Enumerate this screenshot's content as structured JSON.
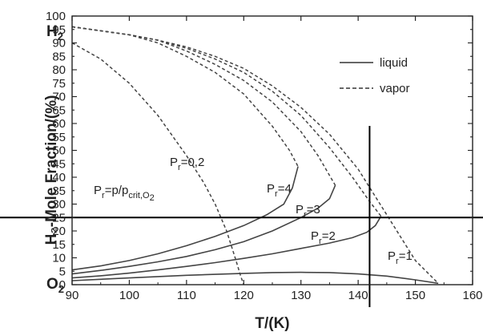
{
  "chart_data": {
    "type": "line",
    "xlabel": "T/(K)",
    "ylabel": "H₂-Mole Fraction/(%)",
    "xlim": [
      90,
      160
    ],
    "ylim": [
      0,
      100
    ],
    "x_ticks": [
      "90",
      "100",
      "110",
      "120",
      "130",
      "140",
      "150",
      "160"
    ],
    "y_ticks": [
      "0",
      "5",
      "10",
      "15",
      "20",
      "25",
      "30",
      "35",
      "40",
      "45",
      "50",
      "55",
      "60",
      "65",
      "70",
      "75",
      "80",
      "85",
      "90",
      "95",
      "100"
    ],
    "grid": false,
    "legend_position": "top-right",
    "legend": [
      {
        "label": "liquid",
        "style": "solid"
      },
      {
        "label": "vapor",
        "style": "dashed"
      }
    ],
    "axis_end_labels": {
      "top": {
        "main": "H",
        "sub": "2"
      },
      "bottom": {
        "main": "O",
        "sub": "2"
      }
    },
    "equation_label": {
      "a": "P",
      "a_sub": "r",
      "b": "=p/p",
      "b_sub": "crit,O",
      "b_sub2": "2"
    },
    "series": [
      {
        "curve": "Pr=0.2",
        "label_main": "P",
        "label_sub": "r",
        "label_val": "=0,2",
        "style": "dashed",
        "points": [
          [
            90,
            90
          ],
          [
            95,
            84
          ],
          [
            100,
            75
          ],
          [
            105,
            63
          ],
          [
            110,
            48
          ],
          [
            113,
            38
          ],
          [
            115,
            30
          ],
          [
            117,
            20
          ],
          [
            118.5,
            10
          ],
          [
            119.5,
            3
          ],
          [
            120,
            0
          ]
        ]
      },
      {
        "curve": "Pr=4",
        "label_main": "P",
        "label_sub": "r",
        "label_val": "=4",
        "style": "solid+dashed",
        "liquid": [
          [
            90,
            5.5
          ],
          [
            95,
            7
          ],
          [
            100,
            9
          ],
          [
            105,
            11.5
          ],
          [
            110,
            14.5
          ],
          [
            115,
            18
          ],
          [
            120,
            22
          ],
          [
            124,
            26
          ],
          [
            127,
            30
          ],
          [
            128.5,
            36
          ],
          [
            129.5,
            44
          ]
        ],
        "vapor": [
          [
            90,
            96
          ],
          [
            95,
            94.5
          ],
          [
            100,
            93
          ],
          [
            105,
            90
          ],
          [
            110,
            85
          ],
          [
            115,
            79
          ],
          [
            120,
            71
          ],
          [
            125,
            59
          ],
          [
            128,
            50
          ],
          [
            129.5,
            44
          ]
        ]
      },
      {
        "curve": "Pr=3",
        "label_main": "P",
        "label_sub": "r",
        "label_val": "=3",
        "style": "solid+dashed",
        "liquid": [
          [
            90,
            4
          ],
          [
            95,
            5.3
          ],
          [
            100,
            6.8
          ],
          [
            105,
            8.5
          ],
          [
            110,
            10.5
          ],
          [
            115,
            13
          ],
          [
            120,
            16
          ],
          [
            125,
            20
          ],
          [
            130,
            25
          ],
          [
            133,
            28.5
          ],
          [
            135,
            32
          ],
          [
            136,
            37
          ]
        ],
        "vapor": [
          [
            90,
            96
          ],
          [
            95,
            94.5
          ],
          [
            100,
            93
          ],
          [
            105,
            91
          ],
          [
            110,
            87
          ],
          [
            115,
            82
          ],
          [
            120,
            76
          ],
          [
            125,
            68
          ],
          [
            130,
            57
          ],
          [
            133,
            48
          ],
          [
            136,
            37
          ]
        ]
      },
      {
        "curve": "Pr=2",
        "label_main": "P",
        "label_sub": "r",
        "label_val": "=2",
        "style": "solid+dashed",
        "liquid": [
          [
            90,
            2.5
          ],
          [
            95,
            3.3
          ],
          [
            100,
            4.3
          ],
          [
            105,
            5.5
          ],
          [
            110,
            6.8
          ],
          [
            115,
            8.2
          ],
          [
            120,
            9.8
          ],
          [
            125,
            11.5
          ],
          [
            130,
            13.5
          ],
          [
            135,
            15.5
          ],
          [
            139,
            17.5
          ],
          [
            141.5,
            19.5
          ],
          [
            143,
            22
          ],
          [
            144,
            25.5
          ]
        ],
        "vapor": [
          [
            90,
            96
          ],
          [
            95,
            94.5
          ],
          [
            100,
            93
          ],
          [
            105,
            91
          ],
          [
            110,
            88
          ],
          [
            115,
            84
          ],
          [
            120,
            79
          ],
          [
            125,
            72
          ],
          [
            130,
            63
          ],
          [
            135,
            51
          ],
          [
            139,
            40
          ],
          [
            142,
            31
          ],
          [
            144,
            25.5
          ]
        ]
      },
      {
        "curve": "Pr=1",
        "label_main": "P",
        "label_sub": "r",
        "label_val": "=1",
        "style": "solid+dashed",
        "liquid": [
          [
            90,
            1.5
          ],
          [
            100,
            2.5
          ],
          [
            110,
            3.5
          ],
          [
            120,
            4.2
          ],
          [
            125,
            4.5
          ],
          [
            130,
            4.6
          ],
          [
            135,
            4.5
          ],
          [
            140,
            4
          ],
          [
            145,
            3.2
          ],
          [
            150,
            1.8
          ],
          [
            154,
            0.5
          ]
        ],
        "vapor": [
          [
            90,
            96
          ],
          [
            95,
            94.5
          ],
          [
            100,
            93
          ],
          [
            105,
            91
          ],
          [
            110,
            88.5
          ],
          [
            115,
            85
          ],
          [
            120,
            80.5
          ],
          [
            125,
            74
          ],
          [
            130,
            66
          ],
          [
            135,
            56
          ],
          [
            140,
            43
          ],
          [
            145,
            26
          ],
          [
            150,
            9
          ],
          [
            154,
            0.5
          ]
        ]
      }
    ],
    "reference_lines": {
      "horizontal_y": 25,
      "vertical_x": 142
    }
  }
}
